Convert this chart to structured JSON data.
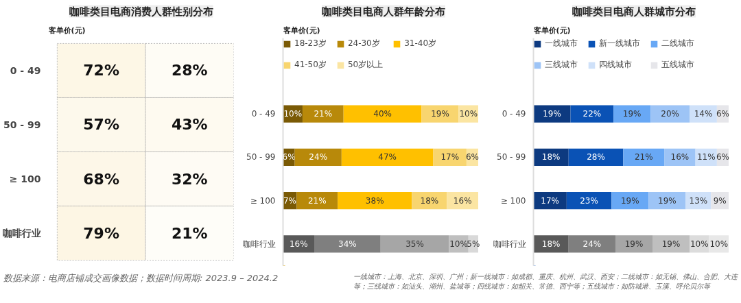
{
  "chart_data": [
    {
      "type": "heatmap",
      "title": "咖啡类目电商消费人群性别分布",
      "ylabel": "客单价(元)",
      "categories": [
        null,
        null
      ],
      "y_categories": [
        "0 - 49",
        "50 - 99",
        "≥ 100",
        "咖啡行业"
      ],
      "cells": [
        [
          72,
          28
        ],
        [
          57,
          43
        ],
        [
          68,
          32
        ],
        [
          79,
          21
        ]
      ],
      "cell_labels": [
        [
          "72%",
          "28%"
        ],
        [
          "57%",
          "43%"
        ],
        [
          "68%",
          "32%"
        ],
        [
          "79%",
          "21%"
        ]
      ],
      "annotations": [
        "数据来源：电商店铺成交画像数据；数据时间周期: 2023.9 – 2024.2"
      ]
    },
    {
      "type": "bar",
      "orientation": "horizontal",
      "stacked": true,
      "title": "咖啡类目电商人群年龄分布",
      "ylabel": "客单价(元)",
      "categories": [
        "0 - 49",
        "50 - 99",
        "≥ 100",
        "咖啡行业"
      ],
      "tick_labels": "y",
      "legend": "top",
      "series": [
        {
          "name": "18-23岁",
          "color": "#7a5a05",
          "colors": [
            "#7a5a05",
            "#7a5a05",
            "#7a5a05",
            "#595959"
          ],
          "values": [
            10,
            6,
            7,
            16
          ],
          "value_labels": [
            "10%",
            "6%",
            "7%",
            "16%"
          ]
        },
        {
          "name": "24-30岁",
          "color": "#b8890a",
          "colors": [
            "#b8890a",
            "#b8890a",
            "#b8890a",
            "#7f7f7f"
          ],
          "values": [
            21,
            24,
            21,
            34
          ],
          "value_labels": [
            "21%",
            "24%",
            "21%",
            "34%"
          ]
        },
        {
          "name": "31-40岁",
          "color": "#ffc000",
          "colors": [
            "#ffc000",
            "#ffc000",
            "#ffc000",
            "#a6a6a6"
          ],
          "values": [
            40,
            47,
            38,
            35
          ],
          "value_labels": [
            "40%",
            "47%",
            "38%",
            "35%"
          ]
        },
        {
          "name": "41-50岁",
          "color": "#f8d56f",
          "colors": [
            "#f8d56f",
            "#f8d56f",
            "#f8d56f",
            "#bfbfbf"
          ],
          "values": [
            19,
            17,
            18,
            10
          ],
          "value_labels": [
            "19%",
            "17%",
            "18%",
            "10%"
          ]
        },
        {
          "name": "50岁以上",
          "color": "#fbe5a2",
          "colors": [
            "#fbe5a2",
            "#fbe5a2",
            "#fbe5a2",
            "#d9d9d9"
          ],
          "values": [
            10,
            6,
            16,
            5
          ],
          "value_labels": [
            "10%",
            "6%",
            "16%",
            "5%"
          ]
        }
      ]
    },
    {
      "type": "bar",
      "orientation": "horizontal",
      "stacked": true,
      "title": "咖啡类目电商人群城市分布",
      "ylabel": "客单价(元)",
      "categories": [
        "0 - 49",
        "50 - 99",
        "≥ 100",
        "咖啡行业"
      ],
      "tick_labels": "y",
      "legend": "top",
      "series": [
        {
          "name": "一线城市",
          "color": "#0d3a80",
          "colors": [
            "#0d3a80",
            "#0d3a80",
            "#0d3a80",
            "#595959"
          ],
          "values": [
            19,
            18,
            17,
            18
          ],
          "value_labels": [
            "19%",
            "18%",
            "17%",
            "18%"
          ]
        },
        {
          "name": "新一线城市",
          "color": "#0a52b5",
          "colors": [
            "#0a52b5",
            "#0a52b5",
            "#0a52b5",
            "#7f7f7f"
          ],
          "values": [
            22,
            28,
            23,
            24
          ],
          "value_labels": [
            "22%",
            "28%",
            "23%",
            "24%"
          ]
        },
        {
          "name": "二线城市",
          "color": "#68a8f5",
          "colors": [
            "#68a8f5",
            "#68a8f5",
            "#68a8f5",
            "#a6a6a6"
          ],
          "values": [
            19,
            21,
            19,
            19
          ],
          "value_labels": [
            "19%",
            "21%",
            "19%",
            "19%"
          ]
        },
        {
          "name": "三线城市",
          "color": "#9dc4f6",
          "colors": [
            "#9dc4f6",
            "#9dc4f6",
            "#9dc4f6",
            "#bfbfbf"
          ],
          "values": [
            20,
            16,
            19,
            19
          ],
          "value_labels": [
            "20%",
            "16%",
            "19%",
            "19%"
          ]
        },
        {
          "name": "四线城市",
          "color": "#cfe1f9",
          "colors": [
            "#cfe1f9",
            "#cfe1f9",
            "#cfe1f9",
            "#dcdcdc"
          ],
          "values": [
            14,
            11,
            13,
            10
          ],
          "value_labels": [
            "14%",
            "11%",
            "13%",
            "10%"
          ]
        },
        {
          "name": "五线城市",
          "color": "#e6e6ea",
          "colors": [
            "#e6e6ea",
            "#e6e6ea",
            "#e6e6ea",
            "#e8e8e8"
          ],
          "values": [
            6,
            6,
            9,
            10
          ],
          "value_labels": [
            "6%",
            "6%",
            "9%",
            "10%"
          ]
        }
      ],
      "annotations": [
        "一线城市：上海、北京、深圳、广州；新一线城市：如成都、重庆、杭州、武汉、西安；二线城市：如无锡、佛山、合肥、大连等；三线城市：如汕头、湖州、盐城等；四线城市：如韶关、常德、西宁等；五线城市：如防城港、玉溪、呼伦贝尔等"
      ]
    }
  ]
}
